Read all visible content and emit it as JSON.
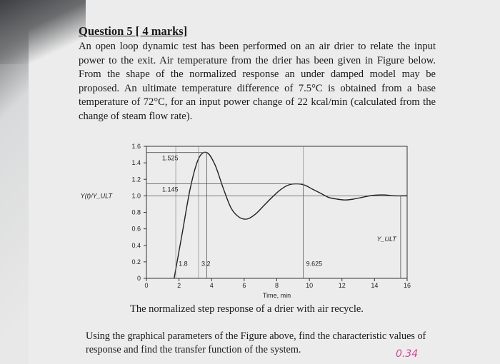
{
  "question": {
    "heading": "Question 5 [ 4 marks]",
    "body": "An open loop dynamic test has been performed on an air drier to relate the input power to the exit. Air temperature from the drier has been given in Figure below. From the shape of the normalized response an under damped model may be proposed. An ultimate temperature difference of 7.5°C is obtained from a base temperature of 72°C, for an input power change of 22 kcal/min (calculated from the change of steam flow rate)."
  },
  "figure": {
    "caption": "The normalized step response of a drier with air recycle."
  },
  "chart_data": {
    "type": "line",
    "xlabel": "Time, min",
    "ylabel": "Y(t)/Y_ULT",
    "xlim": [
      0,
      16
    ],
    "ylim": [
      0,
      1.6
    ],
    "x_ticks": [
      "0",
      "2",
      "4",
      "6",
      "8",
      "10",
      "12",
      "14",
      "16"
    ],
    "y_ticks": [
      "0",
      "0.2",
      "0.4",
      "0.6",
      "0.8",
      "1.0",
      "1.2",
      "1.4",
      "1.6"
    ],
    "x": [
      1.7,
      2.2,
      2.7,
      3.2,
      3.7,
      4.2,
      4.7,
      5.2,
      5.7,
      6.2,
      6.7,
      7.2,
      7.7,
      8.2,
      8.7,
      9.2,
      9.7,
      10.2,
      10.7,
      11.2,
      11.7,
      12.2,
      12.7,
      13.2,
      13.7,
      14.2,
      14.7,
      15.2,
      15.7,
      16.0
    ],
    "y": [
      0.0,
      0.55,
      1.1,
      1.45,
      1.525,
      1.38,
      1.1,
      0.85,
      0.74,
      0.72,
      0.78,
      0.88,
      0.98,
      1.07,
      1.13,
      1.145,
      1.13,
      1.08,
      1.03,
      0.98,
      0.96,
      0.95,
      0.96,
      0.98,
      1.0,
      1.01,
      1.01,
      1.0,
      1.0,
      1.0
    ],
    "annotations": [
      {
        "label": "1.525",
        "x": 3.7,
        "y": 1.525
      },
      {
        "label": "1.145",
        "x": 9.625,
        "y": 1.145
      },
      {
        "label": "1.8",
        "x": 1.8,
        "y": 0
      },
      {
        "label": "3.2",
        "x": 3.2,
        "y": 0
      },
      {
        "label": "9.625",
        "x": 9.625,
        "y": 0
      },
      {
        "label": "Y_ULT",
        "x": 15.6,
        "y": 1.0
      }
    ],
    "grid": false
  },
  "footer": {
    "text": "Using the graphical parameters of the Figure above, find the characteristic values of response and find the transfer function of the system.",
    "handwritten": "0.34"
  }
}
